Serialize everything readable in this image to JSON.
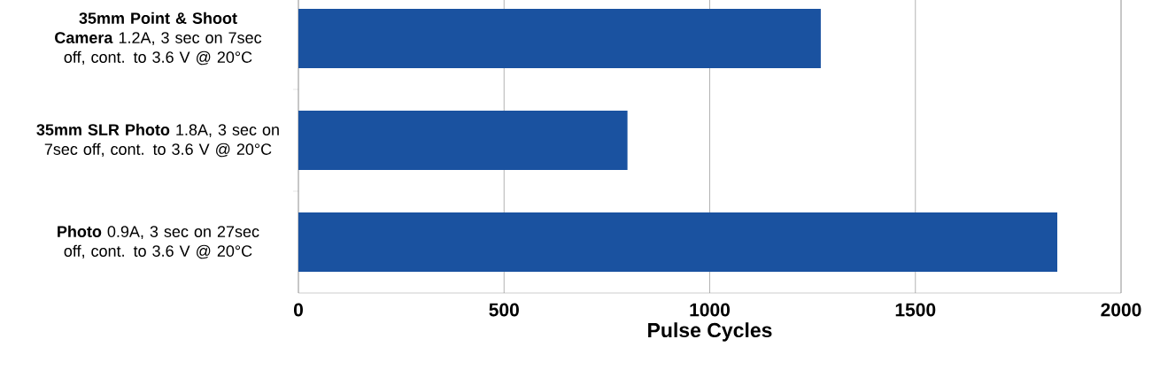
{
  "chart_data": {
    "type": "bar",
    "orientation": "horizontal",
    "categories": [
      "**35mm Point & Shoot Camera** 1.2A, 3 sec on 7sec off, cont. to 3.6 V @ 20°C",
      "**35mm SLR Photo** 1.8A, 3 sec on 7sec off, cont. to 3.6 V @ 20°C",
      "**Photo** 0.9A, 3 sec on 27sec off, cont. to 3.6 V @ 20°C"
    ],
    "values": [
      1270,
      800,
      1845
    ],
    "color": "#1a52a0",
    "xlabel": "Pulse Cycles",
    "xlim": [
      0,
      2000
    ],
    "xticks": [
      0,
      500,
      1000,
      1500,
      2000
    ],
    "grid": "x"
  }
}
